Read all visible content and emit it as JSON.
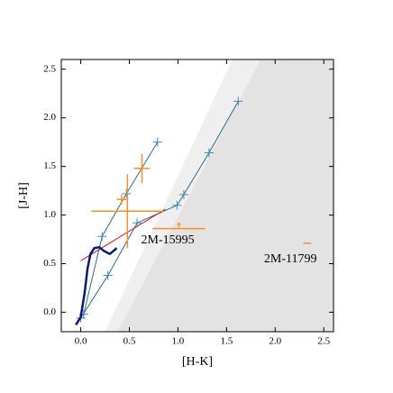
{
  "chart_data": {
    "type": "scatter",
    "xlabel": "[H-K]",
    "ylabel": "[J-H]",
    "xlim": [
      -0.2,
      2.6
    ],
    "ylim": [
      -0.2,
      2.6
    ],
    "xticks": [
      {
        "value": 0,
        "label": "0.0"
      },
      {
        "value": 0.5,
        "label": "0.5"
      },
      {
        "value": 1,
        "label": "1.0"
      },
      {
        "value": 1.5,
        "label": "1.5"
      },
      {
        "value": 2,
        "label": "2.0"
      },
      {
        "value": 2.5,
        "label": "2.5"
      }
    ],
    "yticks": [
      {
        "value": 0,
        "label": "0.0"
      },
      {
        "value": 0.5,
        "label": "0.5"
      },
      {
        "value": 1,
        "label": "1.0"
      },
      {
        "value": 1.5,
        "label": "1.5"
      },
      {
        "value": 2,
        "label": "2.0"
      },
      {
        "value": 2.5,
        "label": "2.5"
      }
    ],
    "regions": [
      {
        "color": "#efefef",
        "x": [
          0.25,
          1.56,
          2.6,
          2.6,
          0.25
        ],
        "y": [
          -0.2,
          2.6,
          2.6,
          -0.2,
          -0.2
        ]
      },
      {
        "color": "#e3e3e3",
        "x": [
          0.38,
          1.85,
          2.6,
          2.6,
          0.38
        ],
        "y": [
          -0.2,
          2.6,
          2.6,
          -0.2,
          -0.2
        ]
      }
    ],
    "lines": [
      {
        "color": "#2a6f8f",
        "width": 1,
        "markers": true,
        "x": [
          0.0,
          0.28,
          0.58,
          0.99,
          1.06,
          1.32,
          1.62
        ],
        "y": [
          -0.06,
          0.38,
          0.92,
          1.1,
          1.21,
          1.64,
          2.17
        ]
      },
      {
        "color": "#2a6f8f",
        "width": 1,
        "markers": true,
        "x": [
          0.03,
          0.22,
          0.47,
          0.79
        ],
        "y": [
          -0.02,
          0.78,
          1.22,
          1.75
        ]
      },
      {
        "color": "#e0101a",
        "width": 1,
        "markers": false,
        "x": [
          0.0,
          0.87
        ],
        "y": [
          0.53,
          1.06
        ]
      },
      {
        "color": "#0a1a6e",
        "width": 2.5,
        "markers": false,
        "x": [
          -0.05,
          0.0,
          0.04,
          0.07,
          0.1,
          0.14,
          0.19,
          0.24,
          0.3,
          0.37
        ],
        "y": [
          -0.13,
          -0.05,
          0.2,
          0.45,
          0.6,
          0.66,
          0.67,
          0.63,
          0.6,
          0.66
        ]
      }
    ],
    "points": [
      {
        "color": "#f5902a",
        "x": 0.63,
        "y": 1.48,
        "xerr": 0.08,
        "yerr": 0.15
      },
      {
        "color": "#f5902a",
        "x": 0.42,
        "y": 1.16,
        "xerr": 0.05,
        "yerr": 0.05
      },
      {
        "color": "#f5902a",
        "x": 0.48,
        "y": 1.04,
        "xerr": 0.37,
        "yerr": 0.38
      },
      {
        "color": "#f5902a",
        "x": 1.01,
        "y": 0.86,
        "xerr": 0.27,
        "yerr": 0.06,
        "lower_limit": true,
        "label": "2M-15995"
      },
      {
        "color": "#f5902a",
        "x": 2.33,
        "y": 0.71,
        "xerr": 0.04,
        "yerr": 0,
        "label": "2M-11799"
      }
    ]
  }
}
